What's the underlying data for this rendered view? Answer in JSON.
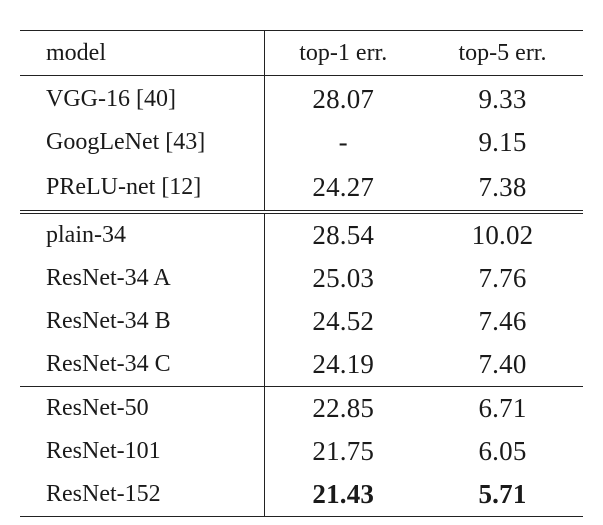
{
  "table": {
    "headers": {
      "model": "model",
      "top1": "top-1 err.",
      "top5": "top-5 err."
    },
    "groups": [
      {
        "rows": [
          {
            "model": "VGG-16 [40]",
            "top1": "28.07",
            "top5": "9.33"
          },
          {
            "model": "GoogLeNet [43]",
            "top1": "-",
            "top5": "9.15"
          },
          {
            "model": "PReLU-net [12]",
            "top1": "24.27",
            "top5": "7.38"
          }
        ]
      },
      {
        "rows": [
          {
            "model": "plain-34",
            "top1": "28.54",
            "top5": "10.02"
          },
          {
            "model": "ResNet-34 A",
            "top1": "25.03",
            "top5": "7.76"
          },
          {
            "model": "ResNet-34 B",
            "top1": "24.52",
            "top5": "7.46"
          },
          {
            "model": "ResNet-34 C",
            "top1": "24.19",
            "top5": "7.40"
          }
        ]
      },
      {
        "rows": [
          {
            "model": "ResNet-50",
            "top1": "22.85",
            "top5": "6.71"
          },
          {
            "model": "ResNet-101",
            "top1": "21.75",
            "top5": "6.05"
          },
          {
            "model": "ResNet-152",
            "top1": "21.43",
            "top5": "5.71",
            "bold": true
          }
        ]
      }
    ]
  }
}
